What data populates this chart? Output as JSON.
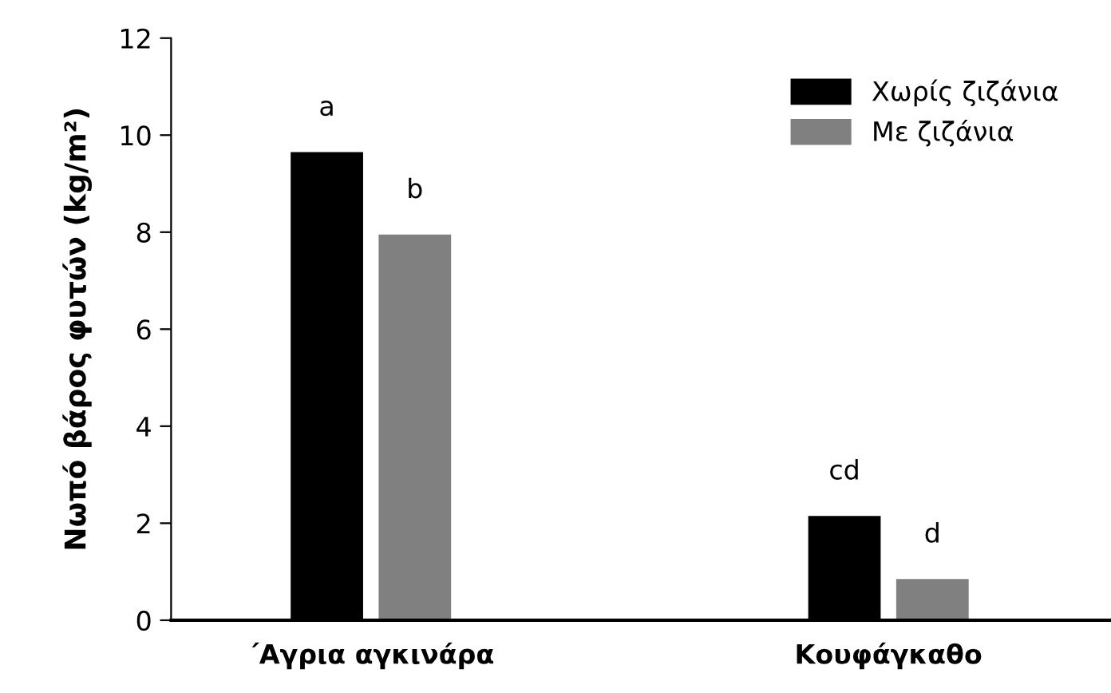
{
  "chart_data": {
    "type": "bar",
    "ylabel": "Νωπό βάρος φυτών (kg/m²)",
    "categories": [
      "΄Αγρια αγκινάρα",
      "Κουφάγκαθο"
    ],
    "series": [
      {
        "name": "Χωρίς ζιζάνια",
        "color": "#000000",
        "values": [
          9.65,
          2.15
        ],
        "value_labels": [
          "a",
          "cd"
        ]
      },
      {
        "name": "Με ζιζάνια",
        "color": "#808080",
        "values": [
          7.95,
          0.85
        ],
        "value_labels": [
          "b",
          "d"
        ]
      }
    ],
    "ylim": [
      0,
      12
    ],
    "yticks": [
      0,
      2,
      4,
      6,
      8,
      10,
      12
    ],
    "grid": false,
    "legend": "top right"
  }
}
